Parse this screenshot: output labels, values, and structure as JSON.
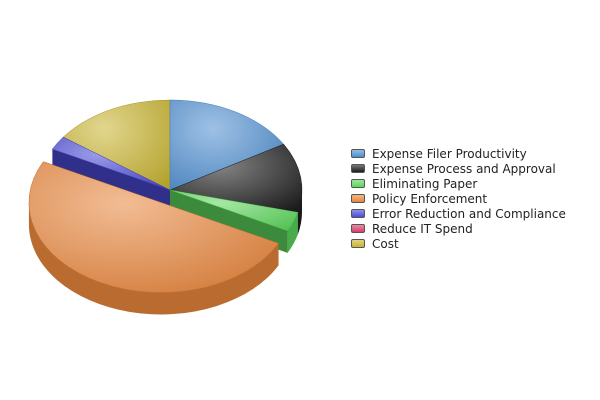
{
  "chart_data": {
    "type": "pie",
    "style": "3d-exploded",
    "title": "",
    "legend_position": "right",
    "start_angle_deg": 0,
    "direction": "clockwise",
    "slices": [
      {
        "label": "Expense Filer Productivity",
        "value": 16.5,
        "color": "#4f8ed0"
      },
      {
        "label": "Expense Process and Approval",
        "value": 12.5,
        "color": "#1e1e1e"
      },
      {
        "label": "Eliminating Paper",
        "value": 3.5,
        "color": "#5cd65c"
      },
      {
        "label": "Policy Enforcement",
        "value": 50.0,
        "color": "#e8863c"
      },
      {
        "label": "Error Reduction and Compliance",
        "value": 2.5,
        "color": "#4a4ad6"
      },
      {
        "label": "Reduce IT Spend",
        "value": 0.0,
        "color": "#d63d6a"
      },
      {
        "label": "Cost",
        "value": 15.0,
        "color": "#c8b432"
      }
    ]
  }
}
